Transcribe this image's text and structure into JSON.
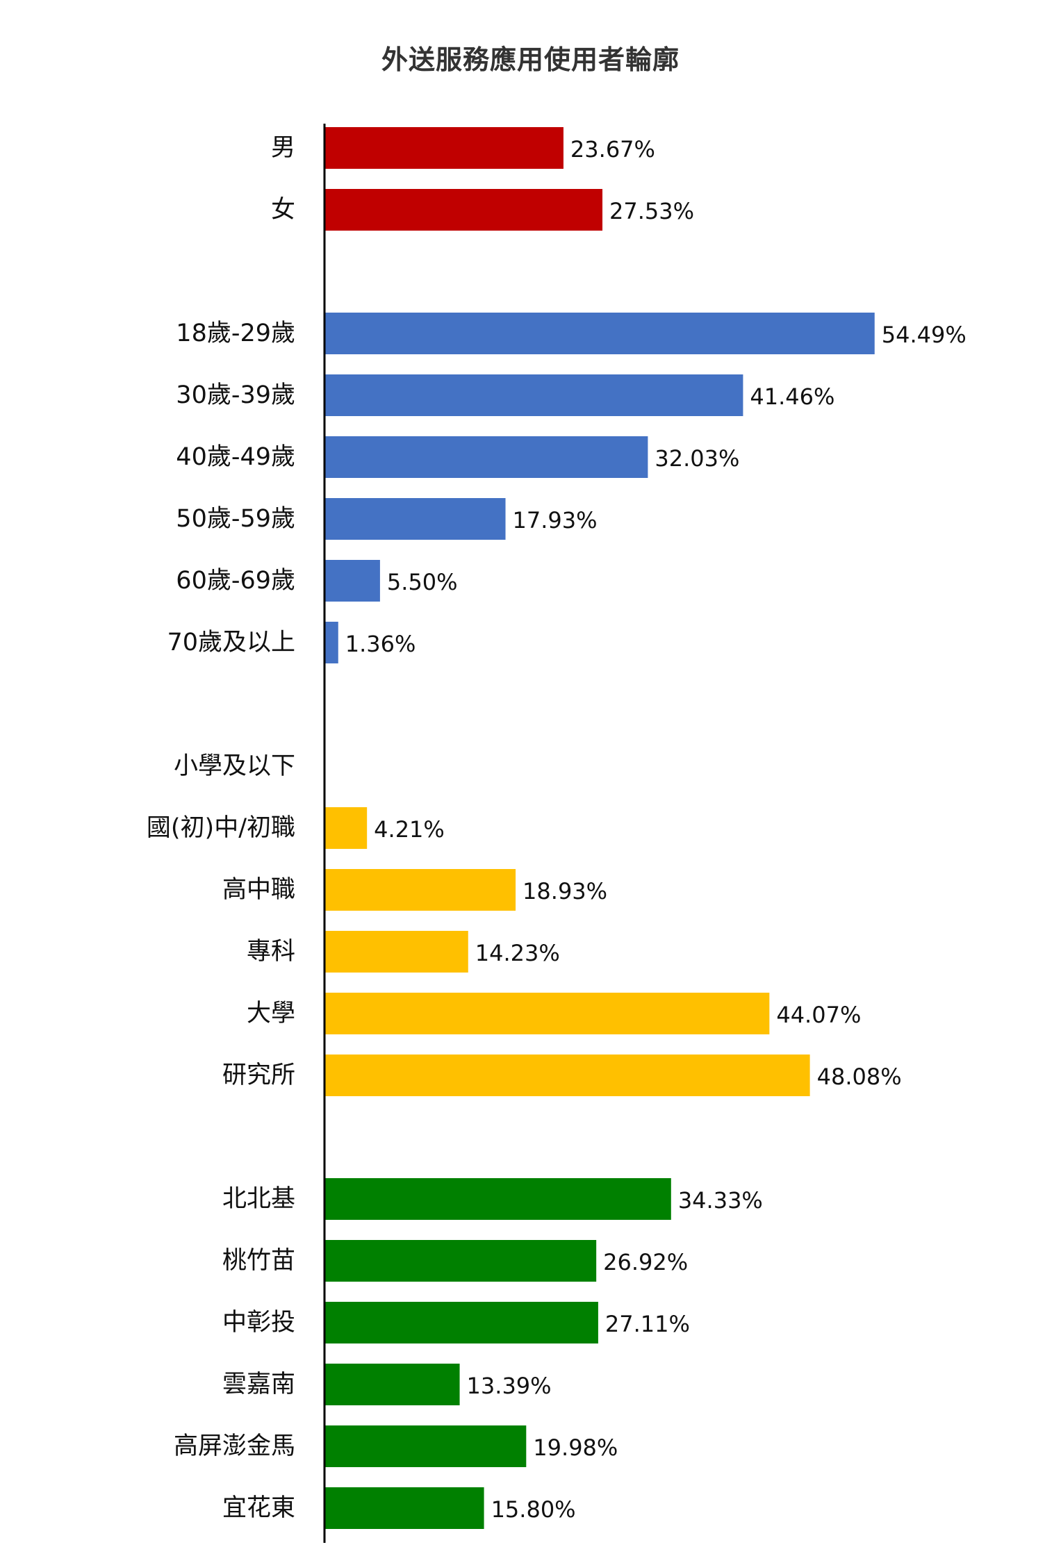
{
  "chart_data": {
    "type": "bar",
    "orientation": "horizontal",
    "title": "外送服務應用使用者輪廓",
    "xlabel": "",
    "ylabel": "",
    "xlim": [
      0,
      56
    ],
    "grid": false,
    "legend": "none",
    "value_format": "percent_2dp",
    "groups": [
      {
        "color": "#C00000",
        "items": [
          {
            "label": "男",
            "value": 23.67
          },
          {
            "label": "女",
            "value": 27.53
          }
        ]
      },
      {
        "color": "#4472C4",
        "items": [
          {
            "label": "18歲-29歲",
            "value": 54.49
          },
          {
            "label": "30歲-39歲",
            "value": 41.46
          },
          {
            "label": "40歲-49歲",
            "value": 32.03
          },
          {
            "label": "50歲-59歲",
            "value": 17.93
          },
          {
            "label": "60歲-69歲",
            "value": 5.5
          },
          {
            "label": "70歲及以上",
            "value": 1.36
          }
        ]
      },
      {
        "color": "#FFC000",
        "items": [
          {
            "label": "小學及以下",
            "value": null
          },
          {
            "label": "國(初)中/初職",
            "value": 4.21
          },
          {
            "label": "高中職",
            "value": 18.93
          },
          {
            "label": "專科",
            "value": 14.23
          },
          {
            "label": "大學",
            "value": 44.07
          },
          {
            "label": "研究所",
            "value": 48.08
          }
        ]
      },
      {
        "color": "#008000",
        "items": [
          {
            "label": "北北基",
            "value": 34.33
          },
          {
            "label": "桃竹苗",
            "value": 26.92
          },
          {
            "label": "中彰投",
            "value": 27.11
          },
          {
            "label": "雲嘉南",
            "value": 13.39
          },
          {
            "label": "高屏澎金馬",
            "value": 19.98
          },
          {
            "label": "宜花東",
            "value": 15.8
          }
        ]
      }
    ]
  }
}
